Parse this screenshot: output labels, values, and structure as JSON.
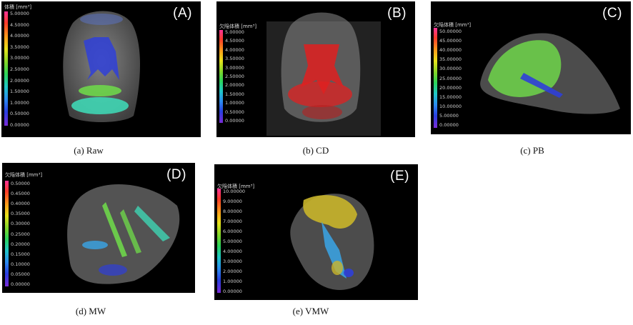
{
  "panels": {
    "a": {
      "letter": "(A)",
      "caption": "(a) Raw",
      "colorbar_title": "体積 [mm³]",
      "ticks": [
        "5.00000",
        "4.50000",
        "4.00000",
        "3.50000",
        "3.00000",
        "2.50000",
        "2.00000",
        "1.50000",
        "1.00000",
        "0.50000",
        "0.00000"
      ]
    },
    "b": {
      "letter": "(B)",
      "caption": "(b) CD",
      "colorbar_title": "欠陥体積 [mm³]",
      "ticks": [
        "5.00000",
        "4.50000",
        "4.00000",
        "3.50000",
        "3.00000",
        "2.50000",
        "2.00000",
        "1.50000",
        "1.00000",
        "0.50000",
        "0.00000"
      ]
    },
    "c": {
      "letter": "(C)",
      "caption": "(c) PB",
      "colorbar_title": "欠陥体積 [mm³]",
      "ticks": [
        "50.00000",
        "45.00000",
        "40.00000",
        "35.00000",
        "30.00000",
        "25.00000",
        "20.00000",
        "15.00000",
        "10.00000",
        "5.00000",
        "0.00000"
      ]
    },
    "d": {
      "letter": "(D)",
      "caption": "(d) MW",
      "colorbar_title": "欠陥体積 [mm³]",
      "ticks": [
        "0.50000",
        "0.45000",
        "0.40000",
        "0.35000",
        "0.30000",
        "0.25000",
        "0.20000",
        "0.15000",
        "0.10000",
        "0.05000",
        "0.00000"
      ]
    },
    "e": {
      "letter": "(E)",
      "caption": "(e) VMW",
      "colorbar_title": "欠陥体積 [mm³]",
      "ticks": [
        "10.00000",
        "9.00000",
        "8.00000",
        "7.00000",
        "6.00000",
        "5.00000",
        "4.00000",
        "3.00000",
        "2.00000",
        "1.00000",
        "0.00000"
      ]
    }
  },
  "colors": {
    "background": "#000000",
    "gray_body": "#8a8a8a",
    "defect_blue": "#2f3fd8",
    "defect_green": "#6ed64a",
    "defect_teal": "#3fd6b4",
    "defect_red": "#e02020",
    "defect_yellow": "#c9b52a",
    "defect_lightblue": "#3aa6e8"
  }
}
